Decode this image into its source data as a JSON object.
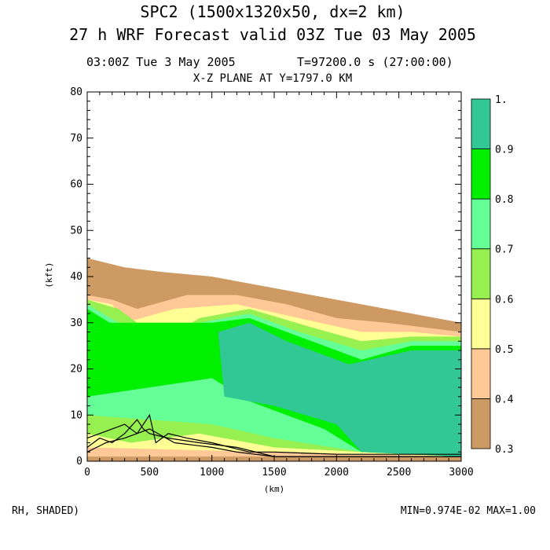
{
  "header": {
    "title_line1": "SPC2 (1500x1320x50, dx=2 km)",
    "title_line2": "27 h WRF Forecast valid 03Z Tue 03 May 2005",
    "time_label": "03:00Z Tue  3 May 2005",
    "time_seconds": "T=97200.0 s (27:00:00)",
    "plane_label": "X-Z PLANE AT Y=1797.0 KM"
  },
  "footer": {
    "field_label": "RH, SHADED)",
    "minmax": "MIN=0.974E-02 MAX=1.00"
  },
  "chart_data": {
    "type": "heatmap",
    "title": "X-Z PLANE AT Y=1797.0 KM",
    "xlabel": "(km)",
    "ylabel": "(kft)",
    "xlim": [
      0,
      3000
    ],
    "ylim": [
      0,
      80
    ],
    "x_ticks": [
      "0",
      "500",
      "1000",
      "1500",
      "2000",
      "2500",
      "3000"
    ],
    "y_ticks": [
      "0",
      "10",
      "20",
      "30",
      "40",
      "50",
      "60",
      "70",
      "80"
    ],
    "colorbar": {
      "levels": [
        "0.3",
        "0.4",
        "0.5",
        "0.6",
        "0.7",
        "0.8",
        "0.9",
        "1."
      ],
      "colors": [
        "#cd9a64",
        "#ffc896",
        "#ffff96",
        "#96f050",
        "#64ff96",
        "#00f000",
        "#32c896"
      ]
    },
    "regions": [
      {
        "level": 0.3,
        "color": "#cd9a64",
        "outline": [
          [
            0,
            44
          ],
          [
            300,
            42
          ],
          [
            600,
            41
          ],
          [
            1000,
            40
          ],
          [
            1400,
            38
          ],
          [
            1800,
            36
          ],
          [
            2200,
            34
          ],
          [
            2600,
            32
          ],
          [
            3000,
            30
          ],
          [
            3000,
            0
          ],
          [
            0,
            0
          ]
        ]
      },
      {
        "level": 0.4,
        "color": "#ffc896",
        "outline": [
          [
            0,
            36
          ],
          [
            200,
            35
          ],
          [
            400,
            33
          ],
          [
            800,
            36
          ],
          [
            1200,
            36
          ],
          [
            1600,
            34
          ],
          [
            2000,
            31
          ],
          [
            2400,
            30
          ],
          [
            3000,
            28
          ],
          [
            3000,
            1
          ],
          [
            0,
            1
          ]
        ]
      },
      {
        "level": 0.5,
        "color": "#ffff96",
        "outline": [
          [
            0,
            35
          ],
          [
            200,
            34
          ],
          [
            300,
            30
          ],
          [
            700,
            33
          ],
          [
            1200,
            34
          ],
          [
            1700,
            31
          ],
          [
            2200,
            28
          ],
          [
            2600,
            28
          ],
          [
            3000,
            27
          ],
          [
            3000,
            1
          ],
          [
            1500,
            2
          ],
          [
            0,
            3
          ]
        ]
      },
      {
        "level": 0.6,
        "color": "#96f050",
        "outline": [
          [
            0,
            35
          ],
          [
            250,
            33
          ],
          [
            600,
            26
          ],
          [
            900,
            31
          ],
          [
            1300,
            33
          ],
          [
            1800,
            29
          ],
          [
            2200,
            26
          ],
          [
            2600,
            27
          ],
          [
            3000,
            27
          ],
          [
            3000,
            1
          ],
          [
            2200,
            2
          ],
          [
            1500,
            3
          ],
          [
            900,
            6
          ],
          [
            350,
            4
          ],
          [
            0,
            6
          ]
        ]
      },
      {
        "level": 0.7,
        "color": "#64ff96",
        "outline": [
          [
            0,
            34
          ],
          [
            250,
            30
          ],
          [
            900,
            30
          ],
          [
            1300,
            32
          ],
          [
            1700,
            28
          ],
          [
            2200,
            24
          ],
          [
            2600,
            26
          ],
          [
            3000,
            26
          ],
          [
            3000,
            1
          ],
          [
            2200,
            2
          ],
          [
            1500,
            5
          ],
          [
            1000,
            8
          ],
          [
            0,
            10
          ]
        ]
      },
      {
        "level": 0.8,
        "color": "#00f000",
        "outline": [
          [
            0,
            33
          ],
          [
            180,
            30
          ],
          [
            1000,
            30
          ],
          [
            1300,
            31
          ],
          [
            1700,
            27
          ],
          [
            2200,
            22
          ],
          [
            2600,
            25
          ],
          [
            3000,
            25
          ],
          [
            3000,
            1
          ],
          [
            2200,
            2
          ],
          [
            1900,
            7
          ],
          [
            1300,
            13
          ],
          [
            1000,
            18
          ],
          [
            0,
            14
          ]
        ]
      },
      {
        "level": 0.9,
        "color": "#32c896",
        "outline": [
          [
            1050,
            28
          ],
          [
            1300,
            30
          ],
          [
            1600,
            26
          ],
          [
            2100,
            21
          ],
          [
            2600,
            24
          ],
          [
            3000,
            24
          ],
          [
            3000,
            1
          ],
          [
            2200,
            2
          ],
          [
            2000,
            8
          ],
          [
            1500,
            12
          ],
          [
            1100,
            14
          ]
        ]
      }
    ],
    "terrain_lines": [
      {
        "name": "",
        "x": [
          0,
          100,
          200,
          300,
          400,
          500,
          550,
          650,
          800,
          1000,
          1300,
          1500,
          2000,
          2500,
          3000
        ],
        "y": [
          5,
          6,
          7,
          8,
          6,
          10,
          4,
          6,
          5,
          4,
          2,
          2,
          1.5,
          1.5,
          1.5
        ]
      },
      {
        "name": "",
        "x": [
          0,
          100,
          200,
          300,
          400,
          450,
          500,
          650,
          900,
          1200,
          1500,
          2000,
          2500,
          3000
        ],
        "y": [
          3,
          5,
          4,
          6,
          9,
          7,
          6,
          5,
          4,
          3,
          1,
          1,
          1,
          1
        ]
      },
      {
        "name": "",
        "x": [
          0,
          150,
          300,
          500,
          700,
          1000,
          1200,
          1500,
          2000,
          2500,
          3000
        ],
        "y": [
          2,
          4,
          5,
          7,
          4,
          3,
          2,
          1,
          1,
          1,
          1
        ]
      }
    ]
  }
}
